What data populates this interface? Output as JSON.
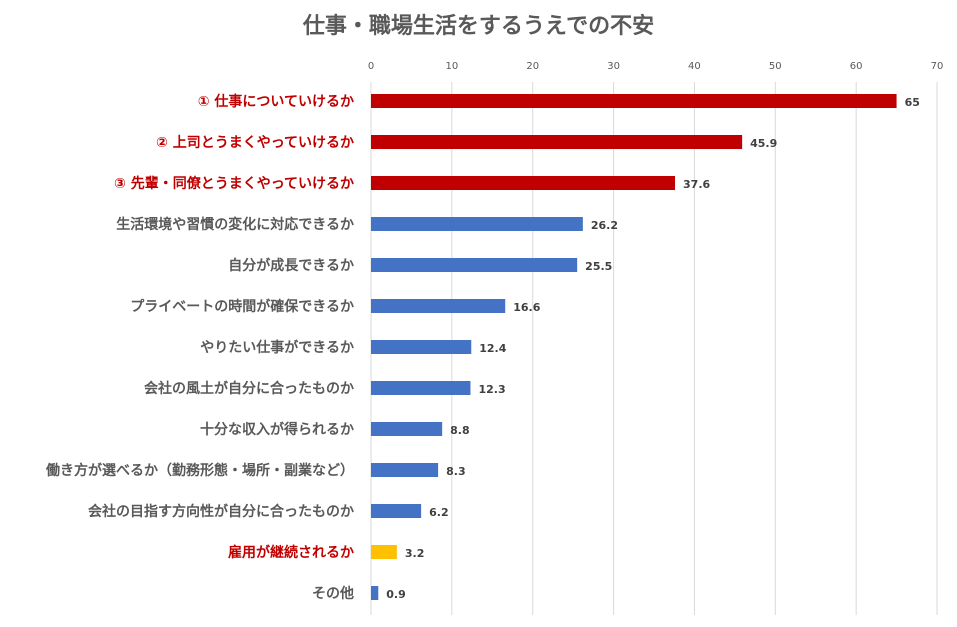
{
  "chart_data": {
    "type": "bar",
    "orientation": "horizontal",
    "title": "仕事・職場生活をするうえでの不安",
    "xlim": [
      0,
      70
    ],
    "x_ticks": [
      "0",
      "10",
      "20",
      "30",
      "40",
      "50",
      "60",
      "70"
    ],
    "grid": true,
    "categories": [
      "① 仕事についていけるか",
      "② 上司とうまくやっていけるか",
      "③ 先輩・同僚とうまくやっていけるか",
      "生活環境や習慣の変化に対応できるか",
      "自分が成長できるか",
      "プライベートの時間が確保できるか",
      "やりたい仕事ができるか",
      "会社の風土が自分に合ったものか",
      "十分な収入が得られるか",
      "働き方が選べるか（勤務形態・場所・副業など）",
      "会社の目指す方向性が自分に合ったものか",
      "雇用が継続されるか",
      "その他"
    ],
    "values": [
      65,
      45.9,
      37.6,
      26.2,
      25.5,
      16.6,
      12.4,
      12.3,
      8.8,
      8.3,
      6.2,
      3.2,
      0.9
    ],
    "value_labels": [
      "65",
      "45.9",
      "37.6",
      "26.2",
      "25.5",
      "16.6",
      "12.4",
      "12.3",
      "8.8",
      "8.3",
      "6.2",
      "3.2",
      "0.9"
    ],
    "bar_colors": [
      "#c00000",
      "#c00000",
      "#c00000",
      "#4472c4",
      "#4472c4",
      "#4472c4",
      "#4472c4",
      "#4472c4",
      "#4472c4",
      "#4472c4",
      "#4472c4",
      "#ffc000",
      "#4472c4"
    ],
    "label_colors": [
      "#c00000",
      "#c00000",
      "#c00000",
      "#595959",
      "#595959",
      "#595959",
      "#595959",
      "#595959",
      "#595959",
      "#595959",
      "#595959",
      "#c00000",
      "#595959"
    ]
  }
}
